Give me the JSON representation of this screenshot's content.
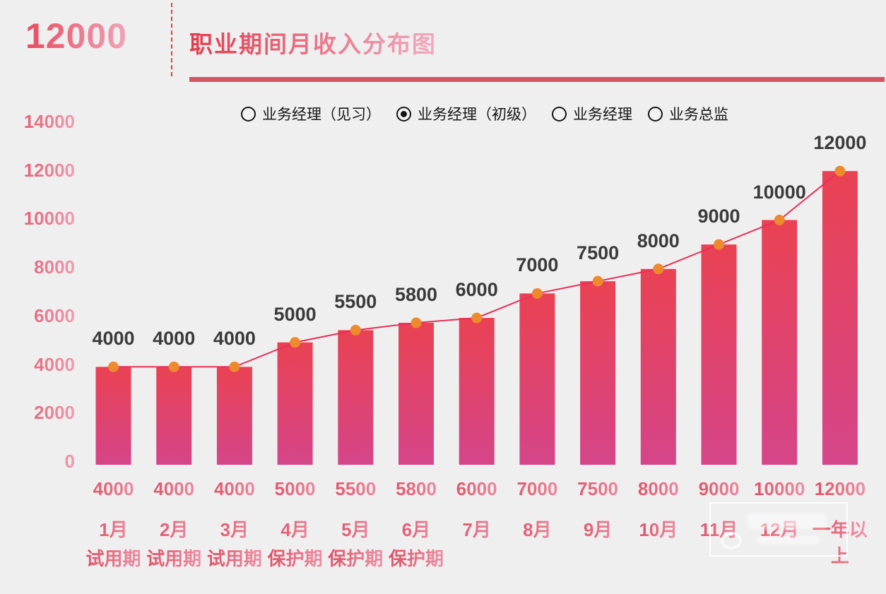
{
  "header": {
    "big_number": "12000",
    "title": "职业期间月收入分布图"
  },
  "chart_data": {
    "type": "bar",
    "line_overlay": true,
    "title": "职业期间月收入分布图",
    "categories": [
      "1月",
      "2月",
      "3月",
      "4月",
      "5月",
      "6月",
      "7月",
      "8月",
      "9月",
      "10月",
      "11月",
      "12月",
      "一年以上"
    ],
    "period_labels": [
      "试用期",
      "试用期",
      "试用期",
      "保护期",
      "保护期",
      "保护期",
      "",
      "",
      "",
      "",
      "",
      "",
      ""
    ],
    "values": [
      4000,
      4000,
      4000,
      5000,
      5500,
      5800,
      6000,
      7000,
      7500,
      8000,
      9000,
      10000,
      12000
    ],
    "show_value_labels_above_bars": true,
    "show_values_as_axis_row": true,
    "y_ticks": [
      14000,
      12000,
      10000,
      8000,
      6000,
      4000,
      2000,
      0
    ],
    "ylim": [
      0,
      14000
    ],
    "grid": false,
    "legend": {
      "position": "top",
      "items": [
        {
          "label": "业务经理（见习）",
          "selected": false
        },
        {
          "label": "业务经理（初级）",
          "selected": true
        },
        {
          "label": "业务经理",
          "selected": false
        },
        {
          "label": "业务总监",
          "selected": false
        }
      ]
    }
  },
  "colors": {
    "background": "#f0eff0",
    "accent_red": "#e63c50",
    "accent_pink_light": "#f2abbe",
    "title_underline": "#d35663",
    "bar_gradient_top": "#ea4253",
    "bar_gradient_bottom": "#d54589",
    "trend_line": "#e82f56",
    "data_point": "#ee8a2e",
    "bar_value_label": "#3b3a3a",
    "legend_text": "#161616",
    "axis_label_gradient_start": "#dc4458",
    "axis_label_gradient_end": "#f09cb0"
  }
}
